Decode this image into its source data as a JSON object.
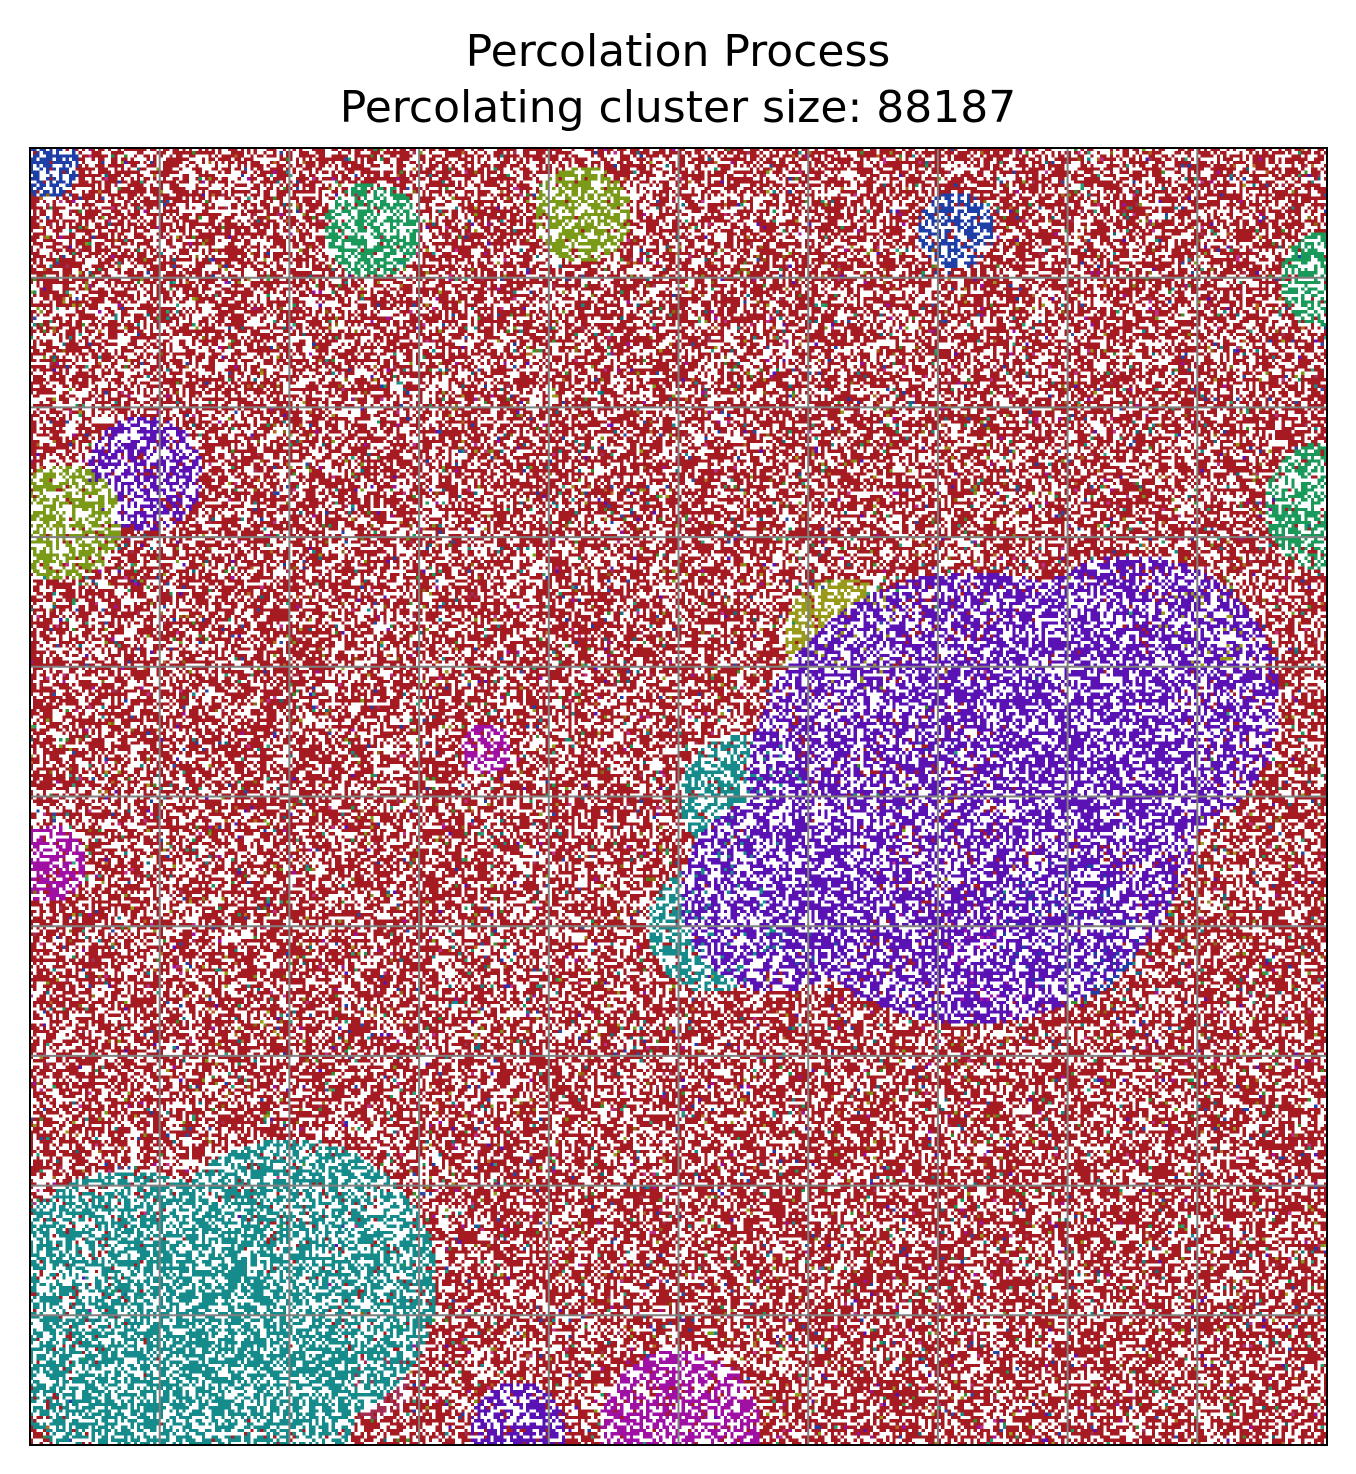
{
  "chart_data": {
    "type": "heatmap",
    "title": "Percolation Process",
    "subtitle": "Percolating cluster size: 88187",
    "grid_lines": true,
    "grid_divisions": 10,
    "lattice_size": 400,
    "occupation_fraction_approx": 0.59,
    "percolating_cluster_size": 88187,
    "percolating_cluster_color": "#a61b22",
    "empty_color": "#ffffff",
    "cluster_palette": [
      "#1f3fa8",
      "#5a12b5",
      "#158b8b",
      "#1a9a5a",
      "#7a9a18",
      "#9a9a1a",
      "#a010a5",
      "#a23055",
      "#b06a20",
      "#2a4aa5",
      "#3a8f2a",
      "#0f6f80",
      "#8a6a10",
      "#c03090",
      "#2aa07a"
    ]
  }
}
